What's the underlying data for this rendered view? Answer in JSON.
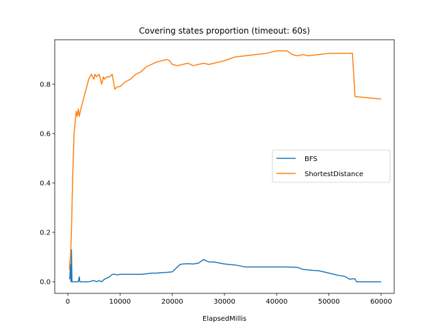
{
  "chart_data": {
    "type": "line",
    "title": "Covering states proportion (timeout: 60s)",
    "xlabel": "ElapsedMillis",
    "ylabel": "",
    "xlim": [
      -2500,
      62500
    ],
    "ylim": [
      -0.047,
      0.98
    ],
    "xticks": [
      0,
      10000,
      20000,
      30000,
      40000,
      50000,
      60000
    ],
    "xtick_labels": [
      "0",
      "10000",
      "20000",
      "30000",
      "40000",
      "50000",
      "60000"
    ],
    "yticks": [
      0.0,
      0.2,
      0.4,
      0.6,
      0.8
    ],
    "ytick_labels": [
      "0.0",
      "0.2",
      "0.4",
      "0.6",
      "0.8"
    ],
    "grid": false,
    "legend_position": "center-right",
    "series": [
      {
        "name": "BFS",
        "color": "#1f77b4",
        "x": [
          300,
          400,
          500,
          600,
          700,
          800,
          900,
          1000,
          1500,
          2000,
          2200,
          2300,
          2500,
          3000,
          4000,
          5000,
          5500,
          6000,
          6500,
          7000,
          7500,
          8000,
          8500,
          9000,
          9500,
          10000,
          11000,
          12000,
          13000,
          14000,
          15000,
          16000,
          17000,
          18000,
          19000,
          20000,
          20500,
          21000,
          21500,
          22000,
          23000,
          24000,
          25000,
          26000,
          27000,
          28000,
          30000,
          32000,
          34000,
          36000,
          38000,
          40000,
          42000,
          44000,
          45000,
          46000,
          47000,
          48000,
          49000,
          50000,
          51000,
          52000,
          53000,
          54000,
          54500,
          55000,
          55300,
          56000,
          58000,
          60000
        ],
        "y": [
          0.01,
          0.02,
          0.07,
          0.0,
          0.13,
          0.0,
          0.0,
          0.0,
          0.0,
          0.0,
          0.02,
          0.0,
          0.0,
          0.0,
          0.0,
          0.005,
          0.0,
          0.005,
          0.0,
          0.01,
          0.015,
          0.02,
          0.03,
          0.03,
          0.028,
          0.03,
          0.03,
          0.03,
          0.03,
          0.03,
          0.032,
          0.035,
          0.035,
          0.037,
          0.038,
          0.04,
          0.05,
          0.06,
          0.07,
          0.072,
          0.073,
          0.072,
          0.075,
          0.09,
          0.08,
          0.08,
          0.072,
          0.068,
          0.06,
          0.06,
          0.06,
          0.06,
          0.06,
          0.058,
          0.05,
          0.048,
          0.046,
          0.045,
          0.04,
          0.035,
          0.03,
          0.025,
          0.022,
          0.01,
          0.012,
          0.012,
          0.0,
          0.0,
          0.0,
          0.0
        ]
      },
      {
        "name": "ShortestDistance",
        "color": "#ff7f0e",
        "x": [
          300,
          500,
          700,
          900,
          1200,
          1600,
          1800,
          2000,
          2200,
          2500,
          3000,
          3500,
          4000,
          4500,
          5000,
          5200,
          5500,
          6000,
          6500,
          6800,
          7000,
          7500,
          8000,
          8500,
          9000,
          9500,
          10000,
          11000,
          12000,
          13000,
          14000,
          15000,
          16000,
          17000,
          18000,
          19000,
          19500,
          20000,
          21000,
          22000,
          23000,
          24000,
          25000,
          26000,
          27000,
          28000,
          29000,
          30000,
          32000,
          34000,
          36000,
          38000,
          40000,
          42000,
          43000,
          44000,
          45000,
          46000,
          48000,
          50000,
          52000,
          54000,
          54500,
          55000,
          60000
        ],
        "y": [
          0.05,
          0.1,
          0.2,
          0.4,
          0.6,
          0.69,
          0.67,
          0.7,
          0.67,
          0.7,
          0.74,
          0.78,
          0.82,
          0.84,
          0.82,
          0.84,
          0.83,
          0.84,
          0.8,
          0.83,
          0.82,
          0.83,
          0.83,
          0.84,
          0.78,
          0.79,
          0.79,
          0.81,
          0.82,
          0.84,
          0.85,
          0.87,
          0.88,
          0.89,
          0.895,
          0.9,
          0.895,
          0.88,
          0.875,
          0.88,
          0.885,
          0.875,
          0.88,
          0.885,
          0.88,
          0.885,
          0.89,
          0.895,
          0.91,
          0.915,
          0.92,
          0.925,
          0.935,
          0.935,
          0.92,
          0.915,
          0.92,
          0.915,
          0.92,
          0.925,
          0.925,
          0.925,
          0.925,
          0.75,
          0.74
        ]
      }
    ]
  }
}
